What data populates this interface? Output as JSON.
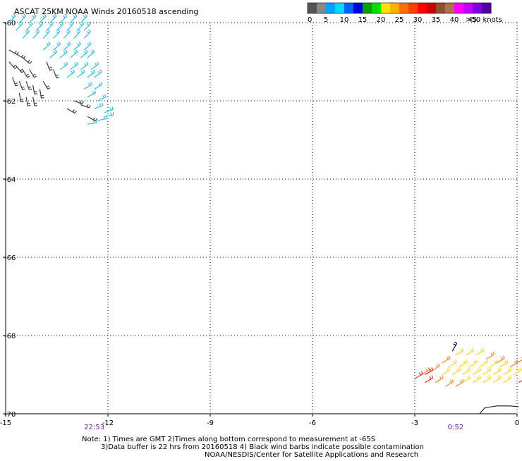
{
  "chart_data": {
    "type": "scatter",
    "title": "ASCAT 25KM NOAA Winds 20160518 ascending",
    "xlim": [
      -15,
      0
    ],
    "ylim": [
      -70,
      -60
    ],
    "x_ticks": [
      {
        "value": -15,
        "label": "-15"
      },
      {
        "value": -12,
        "label": "-12"
      },
      {
        "value": -9,
        "label": "-9"
      },
      {
        "value": -6,
        "label": "-6"
      },
      {
        "value": -3,
        "label": "-3"
      },
      {
        "value": 0,
        "label": "0"
      }
    ],
    "y_ticks": [
      {
        "value": -60,
        "label": "-60"
      },
      {
        "value": -62,
        "label": "-62"
      },
      {
        "value": -64,
        "label": "-64"
      },
      {
        "value": -66,
        "label": "-66"
      },
      {
        "value": -68,
        "label": "-68"
      },
      {
        "value": -70,
        "label": "-70"
      }
    ],
    "grid": true,
    "legend": {
      "position": "top-right",
      "colors": [
        "#555555",
        "#888888",
        "#00a0ff",
        "#00d8ff",
        "#0060ff",
        "#0000e0",
        "#00a000",
        "#00e000",
        "#ffe000",
        "#ffb000",
        "#ff7000",
        "#ff4000",
        "#ff0000",
        "#d00000",
        "#905030",
        "#b07050",
        "#ff00ff",
        "#c000ff",
        "#8000e0",
        "#5000a0"
      ],
      "labels": [
        "0",
        "5",
        "10",
        "15",
        "20",
        "25",
        "30",
        "35",
        "40",
        "45",
        ">50 knots"
      ]
    },
    "time_labels": [
      {
        "x": -12.4,
        "label": "22:53"
      },
      {
        "x": -1.8,
        "label": "0:52"
      }
    ],
    "barb_groups": [
      {
        "name": "cyan",
        "color": "#1fb8e8",
        "points": [
          [
            -14.9,
            -60.0,
            45
          ],
          [
            -14.6,
            -60.0,
            45
          ],
          [
            -14.3,
            -60.0,
            45
          ],
          [
            -14.0,
            -60.0,
            45
          ],
          [
            -13.7,
            -60.0,
            45
          ],
          [
            -13.4,
            -60.0,
            45
          ],
          [
            -13.1,
            -60.0,
            45
          ],
          [
            -12.8,
            -60.0,
            45
          ],
          [
            -14.7,
            -60.2,
            45
          ],
          [
            -14.4,
            -60.2,
            45
          ],
          [
            -14.1,
            -60.2,
            45
          ],
          [
            -13.8,
            -60.2,
            45
          ],
          [
            -13.5,
            -60.2,
            45
          ],
          [
            -13.2,
            -60.2,
            45
          ],
          [
            -12.9,
            -60.2,
            45
          ],
          [
            -12.7,
            -60.2,
            45
          ],
          [
            -14.5,
            -60.4,
            45
          ],
          [
            -14.2,
            -60.4,
            45
          ],
          [
            -13.9,
            -60.4,
            45
          ],
          [
            -13.6,
            -60.4,
            45
          ],
          [
            -13.3,
            -60.4,
            45
          ],
          [
            -13.0,
            -60.4,
            45
          ],
          [
            -12.7,
            -60.4,
            45
          ],
          [
            -13.9,
            -60.7,
            40
          ],
          [
            -13.6,
            -60.7,
            40
          ],
          [
            -13.3,
            -60.7,
            40
          ],
          [
            -13.0,
            -60.7,
            40
          ],
          [
            -12.7,
            -60.7,
            40
          ],
          [
            -13.7,
            -60.9,
            40
          ],
          [
            -13.4,
            -60.9,
            40
          ],
          [
            -13.1,
            -60.9,
            40
          ],
          [
            -12.8,
            -60.9,
            40
          ],
          [
            -12.6,
            -60.9,
            40
          ],
          [
            -13.4,
            -61.2,
            35
          ],
          [
            -13.1,
            -61.2,
            35
          ],
          [
            -12.8,
            -61.2,
            35
          ],
          [
            -12.5,
            -61.2,
            35
          ],
          [
            -13.2,
            -61.4,
            35
          ],
          [
            -12.9,
            -61.4,
            35
          ],
          [
            -12.6,
            -61.4,
            35
          ],
          [
            -12.4,
            -61.4,
            35
          ],
          [
            -12.7,
            -61.7,
            30
          ],
          [
            -12.4,
            -61.7,
            30
          ],
          [
            -12.6,
            -61.9,
            25
          ],
          [
            -12.3,
            -62.0,
            25
          ],
          [
            -12.4,
            -62.2,
            20
          ],
          [
            -12.1,
            -62.3,
            20
          ],
          [
            -12.6,
            -62.6,
            10
          ],
          [
            -12.3,
            -62.5,
            10
          ],
          [
            -12.1,
            -62.4,
            10
          ]
        ]
      },
      {
        "name": "black",
        "color": "#303030",
        "points": [
          [
            -14.9,
            -60.7,
            -30
          ],
          [
            -14.7,
            -60.8,
            -30
          ],
          [
            -14.5,
            -60.9,
            -40
          ],
          [
            -14.9,
            -61.0,
            -50
          ],
          [
            -14.7,
            -61.1,
            -50
          ],
          [
            -14.5,
            -61.2,
            -60
          ],
          [
            -14.3,
            -61.2,
            -60
          ],
          [
            -14.8,
            -61.4,
            -70
          ],
          [
            -14.6,
            -61.5,
            -70
          ],
          [
            -14.4,
            -61.5,
            -70
          ],
          [
            -14.2,
            -61.6,
            -80
          ],
          [
            -14.0,
            -61.7,
            -80
          ],
          [
            -14.6,
            -61.8,
            -80
          ],
          [
            -14.4,
            -61.9,
            -80
          ],
          [
            -14.2,
            -61.9,
            -80
          ],
          [
            -13.8,
            -61.0,
            -70
          ],
          [
            -13.6,
            -61.2,
            -70
          ],
          [
            -13.9,
            -61.5,
            -60
          ],
          [
            -13.0,
            -62.0,
            -20
          ],
          [
            -12.8,
            -62.1,
            -20
          ],
          [
            -13.2,
            -62.2,
            -30
          ],
          [
            -12.6,
            -62.4,
            -30
          ]
        ]
      },
      {
        "name": "yellow",
        "color": "#ffd21e",
        "points": [
          [
            -1.8,
            -68.5,
            30
          ],
          [
            -1.5,
            -68.5,
            30
          ],
          [
            -1.2,
            -68.5,
            30
          ],
          [
            -2.0,
            -68.8,
            30
          ],
          [
            -1.7,
            -68.8,
            30
          ],
          [
            -1.4,
            -68.8,
            30
          ],
          [
            -1.1,
            -68.8,
            30
          ],
          [
            -0.8,
            -68.8,
            30
          ],
          [
            -0.5,
            -68.8,
            30
          ],
          [
            -2.2,
            -69.0,
            30
          ],
          [
            -1.9,
            -69.0,
            30
          ],
          [
            -1.6,
            -69.0,
            30
          ],
          [
            -1.3,
            -69.0,
            30
          ],
          [
            -1.0,
            -69.0,
            30
          ],
          [
            -0.7,
            -69.0,
            30
          ],
          [
            -0.4,
            -69.0,
            30
          ],
          [
            -0.1,
            -69.0,
            30
          ],
          [
            -1.6,
            -69.2,
            30
          ],
          [
            -1.3,
            -69.2,
            30
          ],
          [
            -1.0,
            -69.2,
            30
          ],
          [
            -0.7,
            -69.2,
            30
          ],
          [
            -0.4,
            -69.2,
            30
          ]
        ]
      },
      {
        "name": "orange",
        "color": "#f08020",
        "points": [
          [
            -2.2,
            -68.7,
            30
          ],
          [
            -2.5,
            -68.9,
            30
          ],
          [
            -2.8,
            -69.0,
            30
          ],
          [
            -2.4,
            -69.2,
            30
          ],
          [
            -2.1,
            -69.3,
            30
          ],
          [
            -1.8,
            -69.3,
            30
          ],
          [
            -0.9,
            -68.6,
            30
          ],
          [
            -0.6,
            -68.7,
            30
          ],
          [
            -0.2,
            -68.8,
            30
          ],
          [
            0.0,
            -68.7,
            30
          ]
        ]
      },
      {
        "name": "red",
        "color": "#e02020",
        "points": [
          [
            -3.0,
            -69.1,
            30
          ],
          [
            -2.7,
            -69.2,
            30
          ],
          [
            -2.7,
            -69.0,
            30
          ],
          [
            0.05,
            -69.2,
            30
          ]
        ]
      }
    ],
    "contamination": [
      [
        -1.9,
        -68.4,
        60
      ]
    ],
    "coastline": [
      [
        -1.1,
        -70.0
      ],
      [
        -0.95,
        -69.85
      ],
      [
        -0.6,
        -69.8
      ],
      [
        -0.2,
        -69.8
      ],
      [
        0.05,
        -69.82
      ]
    ],
    "notes": [
      "Note: 1) Times are GMT 2)Times along bottom correspond to measurement at -65S",
      "3)Data buffer is 22 hrs from 20160518 4) Black wind barbs indicate possible contamination",
      "NOAA/NESDIS/Center for Satellite Applications and Research"
    ]
  }
}
